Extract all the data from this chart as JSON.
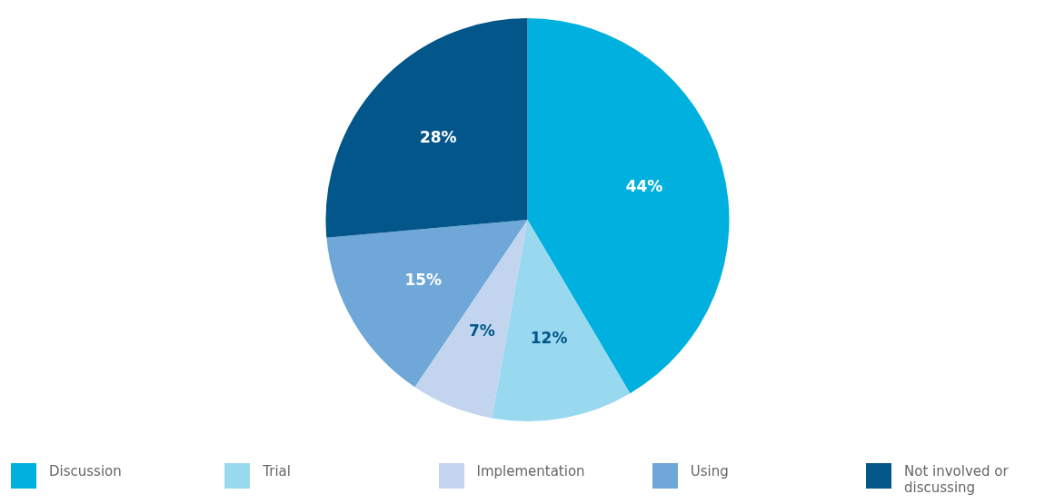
{
  "chart_data": {
    "type": "pie",
    "categories": [
      "Discussion",
      "Trial",
      "Implementation",
      "Using",
      "Not involved or discussing"
    ],
    "values": [
      44,
      12,
      7,
      15,
      28
    ],
    "colors": [
      "#00b0de",
      "#99d9f0",
      "#c3d5ee",
      "#6ea7d8",
      "#02568a"
    ],
    "value_labels": [
      "44%",
      "12%",
      "7%",
      "15%",
      "28%"
    ],
    "legend": "bottom"
  }
}
